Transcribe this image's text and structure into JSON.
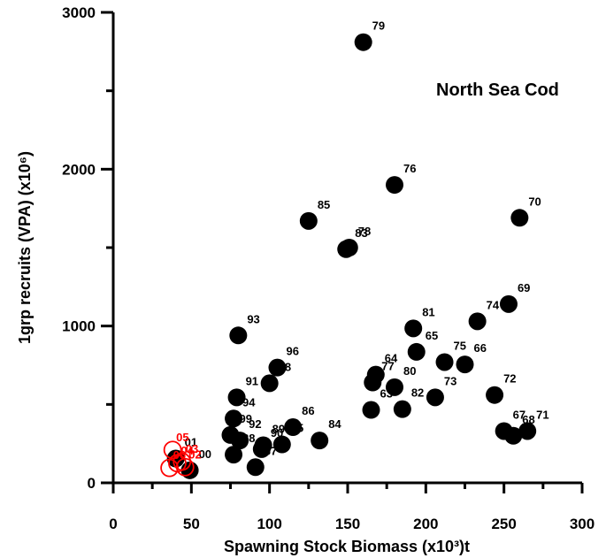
{
  "chart_data": {
    "type": "scatter",
    "title": "North Sea Cod",
    "xlabel": "Spawning Stock Biomass (x10³)t",
    "ylabel": "1grp recruits (VPA) (x10⁶)",
    "xlim": [
      0,
      300
    ],
    "ylim": [
      0,
      3000
    ],
    "x_ticks": [
      "0",
      "50",
      "100",
      "150",
      "200",
      "250",
      "300"
    ],
    "y_ticks": [
      "0",
      "1000",
      "2000",
      "3000"
    ],
    "grid": false,
    "colors": {
      "filled": "#000000",
      "recent": "#ff0000"
    },
    "series": [
      {
        "style": "filled",
        "points": [
          {
            "label": "79",
            "x": 160,
            "y": 2810
          },
          {
            "label": "76",
            "x": 180,
            "y": 1900
          },
          {
            "label": "70",
            "x": 260,
            "y": 1690
          },
          {
            "label": "85",
            "x": 125,
            "y": 1670
          },
          {
            "label": "78",
            "x": 151,
            "y": 1500
          },
          {
            "label": "83",
            "x": 149,
            "y": 1490
          },
          {
            "label": "69",
            "x": 253,
            "y": 1140
          },
          {
            "label": "74",
            "x": 233,
            "y": 1030
          },
          {
            "label": "81",
            "x": 192,
            "y": 985
          },
          {
            "label": "93",
            "x": 80,
            "y": 940
          },
          {
            "label": "65",
            "x": 194,
            "y": 835
          },
          {
            "label": "75",
            "x": 212,
            "y": 770
          },
          {
            "label": "66",
            "x": 225,
            "y": 755
          },
          {
            "label": "96",
            "x": 105,
            "y": 735
          },
          {
            "label": "98",
            "x": 100,
            "y": 635
          },
          {
            "label": "64",
            "x": 168,
            "y": 690
          },
          {
            "label": "77",
            "x": 166,
            "y": 640
          },
          {
            "label": "80",
            "x": 180,
            "y": 610
          },
          {
            "label": "91",
            "x": 79,
            "y": 545
          },
          {
            "label": "72",
            "x": 244,
            "y": 560
          },
          {
            "label": "63",
            "x": 165,
            "y": 465
          },
          {
            "label": "82",
            "x": 185,
            "y": 470
          },
          {
            "label": "73",
            "x": 206,
            "y": 545
          },
          {
            "label": "94",
            "x": 77,
            "y": 410
          },
          {
            "label": "86",
            "x": 115,
            "y": 355
          },
          {
            "label": "99",
            "x": 75,
            "y": 305
          },
          {
            "label": "92",
            "x": 81,
            "y": 270
          },
          {
            "label": "88",
            "x": 77,
            "y": 180
          },
          {
            "label": "90",
            "x": 95,
            "y": 215
          },
          {
            "label": "89",
            "x": 96,
            "y": 240
          },
          {
            "label": "95",
            "x": 108,
            "y": 245
          },
          {
            "label": "87",
            "x": 91,
            "y": 100
          },
          {
            "label": "84",
            "x": 132,
            "y": 270
          },
          {
            "label": "67",
            "x": 250,
            "y": 330
          },
          {
            "label": "68",
            "x": 256,
            "y": 300
          },
          {
            "label": "71",
            "x": 265,
            "y": 330
          },
          {
            "label": "01",
            "x": 40,
            "y": 155
          },
          {
            "label": "00",
            "x": 49,
            "y": 80
          }
        ]
      },
      {
        "style": "open-red",
        "points": [
          {
            "label": "05",
            "x": 38,
            "y": 210
          },
          {
            "label": "03",
            "x": 44,
            "y": 135
          },
          {
            "label": "04",
            "x": 41,
            "y": 125
          },
          {
            "label": "02",
            "x": 46,
            "y": 100
          },
          {
            "label": "06",
            "x": 36,
            "y": 95
          }
        ]
      }
    ]
  }
}
